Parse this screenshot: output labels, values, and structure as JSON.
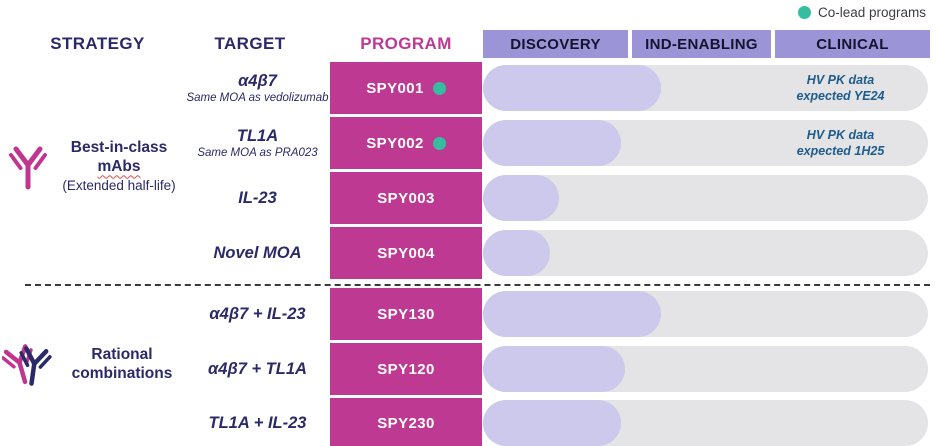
{
  "colors": {
    "magenta": "#BE3A92",
    "navy": "#2B2A68",
    "headerPurple": "#9B95D8",
    "lavender": "#CCC9EC",
    "trackGray": "#E4E3E5",
    "teal": "#36BD9F",
    "noteBlue": "#1D5C8C",
    "phaseText": "#14142E",
    "legendText": "#3C3C46"
  },
  "legend": {
    "label": "Co-lead programs"
  },
  "column_headers": {
    "strategy": "STRATEGY",
    "target": "TARGET",
    "program": "PROGRAM"
  },
  "phases": {
    "discovery": "DISCOVERY",
    "ind_enabling": "IND-ENABLING",
    "clinical": "CLINICAL"
  },
  "strategies": [
    {
      "icon": "antibody-icon",
      "line1": "Best-in-class",
      "line2": "mAbs",
      "line3": "(Extended half-life)"
    },
    {
      "icon": "double-antibody-icon",
      "line1": "Rational",
      "line2": "combinations"
    }
  ],
  "rows": [
    {
      "target": "α4β7",
      "target_sub": "Same MOA as vedolizumab",
      "program": "SPY001",
      "co_lead": true,
      "progress_pct": 40,
      "note_line1": "HV PK data",
      "note_line2": "expected YE24"
    },
    {
      "target": "TL1A",
      "target_sub": "Same MOA as PRA023",
      "program": "SPY002",
      "co_lead": true,
      "progress_pct": 31,
      "note_line1": "HV PK data",
      "note_line2": "expected 1H25"
    },
    {
      "target": "IL-23",
      "program": "SPY003",
      "co_lead": false,
      "progress_pct": 17
    },
    {
      "target": "Novel MOA",
      "program": "SPY004",
      "co_lead": false,
      "progress_pct": 15
    },
    {
      "target": "α4β7 + IL-23",
      "program": "SPY130",
      "co_lead": false,
      "progress_pct": 40
    },
    {
      "target": "α4β7 + TL1A",
      "program": "SPY120",
      "co_lead": false,
      "progress_pct": 32
    },
    {
      "target": "TL1A + IL-23",
      "program": "SPY230",
      "co_lead": false,
      "progress_pct": 31
    }
  ],
  "chart_data": {
    "type": "bar",
    "orientation": "horizontal",
    "title": "",
    "phases": [
      "DISCOVERY",
      "IND-ENABLING",
      "CLINICAL"
    ],
    "categories": [
      "SPY001",
      "SPY002",
      "SPY003",
      "SPY004",
      "SPY130",
      "SPY120",
      "SPY230"
    ],
    "targets": [
      "α4β7",
      "TL1A",
      "IL-23",
      "Novel MOA",
      "α4β7 + IL-23",
      "α4β7 + TL1A",
      "TL1A + IL-23"
    ],
    "values_pct_of_timeline": [
      40,
      31,
      17,
      15,
      40,
      32,
      31
    ],
    "co_lead_programs": [
      "SPY001",
      "SPY002"
    ],
    "annotations": [
      "HV PK data expected YE24",
      "HV PK data expected 1H25",
      null,
      null,
      null,
      null,
      null
    ],
    "groups": [
      {
        "label": "Best-in-class mAbs (Extended half-life)",
        "programs": [
          "SPY001",
          "SPY002",
          "SPY003",
          "SPY004"
        ]
      },
      {
        "label": "Rational combinations",
        "programs": [
          "SPY130",
          "SPY120",
          "SPY230"
        ]
      }
    ],
    "legend_position": "top-right",
    "grid": false
  }
}
